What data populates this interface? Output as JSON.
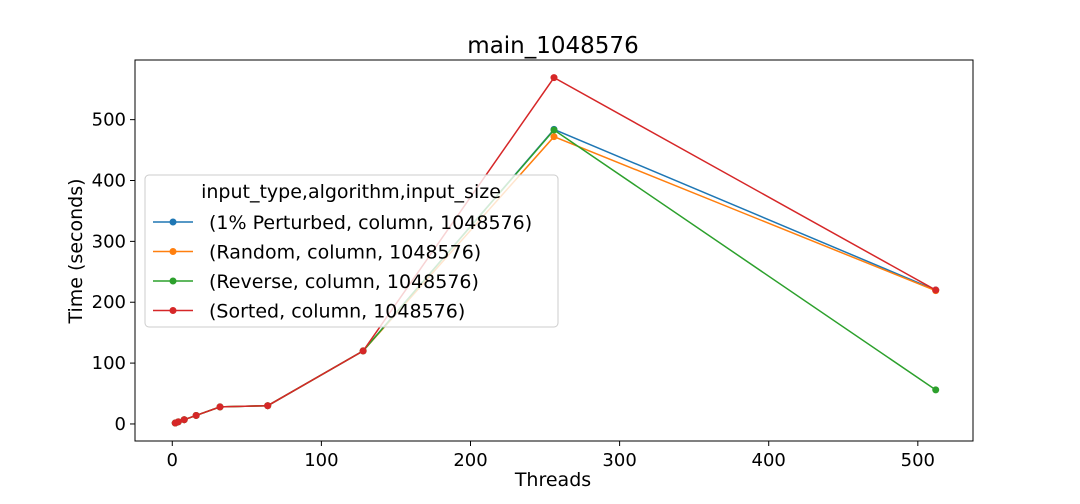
{
  "chart_data": {
    "type": "line",
    "title": "main_1048576",
    "xlabel": "Threads",
    "ylabel": "Time (seconds)",
    "xlim": [
      -25,
      537
    ],
    "ylim": [
      -28,
      598
    ],
    "xticks": [
      0,
      100,
      200,
      300,
      400,
      500
    ],
    "yticks": [
      0,
      100,
      200,
      300,
      400,
      500
    ],
    "grid": false,
    "legend": {
      "title": "input_type,algorithm,input_size",
      "placement": "center-left"
    },
    "series": [
      {
        "name": "(1% Perturbed, column, 1048576)",
        "color": "#1f77b4",
        "x": [
          2,
          4,
          8,
          16,
          32,
          64,
          128,
          256,
          512
        ],
        "y": [
          1.5,
          3.5,
          7,
          14,
          28,
          30,
          120,
          484,
          220
        ]
      },
      {
        "name": "(Random, column, 1048576)",
        "color": "#ff7f0e",
        "x": [
          2,
          4,
          8,
          16,
          32,
          64,
          128,
          256,
          512
        ],
        "y": [
          1.5,
          3.5,
          7,
          14,
          28,
          30,
          120,
          472,
          219
        ]
      },
      {
        "name": "(Reverse, column, 1048576)",
        "color": "#2ca02c",
        "x": [
          2,
          4,
          8,
          16,
          32,
          64,
          128,
          256,
          512
        ],
        "y": [
          1.5,
          3.5,
          7,
          14,
          28,
          30,
          120,
          483,
          56
        ]
      },
      {
        "name": "(Sorted, column, 1048576)",
        "color": "#d62728",
        "x": [
          2,
          4,
          8,
          16,
          32,
          64,
          128,
          256,
          512
        ],
        "y": [
          1.5,
          3.5,
          7,
          14,
          28,
          30,
          120,
          569,
          220
        ]
      }
    ]
  }
}
